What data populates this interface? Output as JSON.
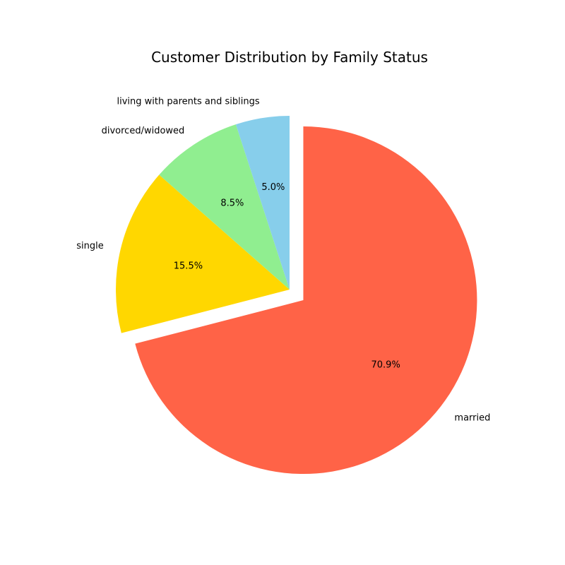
{
  "chart_data": {
    "type": "pie",
    "title": "Customer Distribution by Family Status",
    "categories": [
      "married",
      "single",
      "divorced/widowed",
      "living with parents and siblings"
    ],
    "values": [
      70.9,
      15.5,
      8.5,
      5.0
    ],
    "percent_labels": [
      "70.9%",
      "15.5%",
      "8.5%",
      "5.0%"
    ],
    "colors": [
      "#ff6347",
      "#ffd700",
      "#90ee90",
      "#87ceeb"
    ],
    "exploded": [
      "married"
    ],
    "start_angle_deg": 90,
    "direction": "clockwise"
  }
}
